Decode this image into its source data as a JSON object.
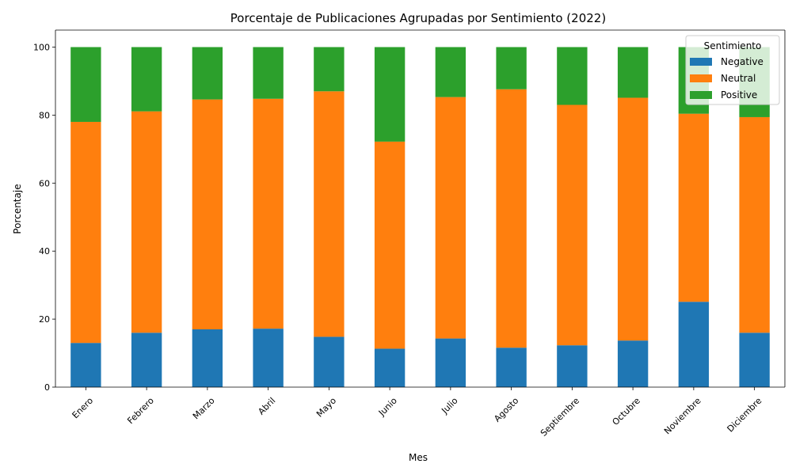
{
  "chart_data": {
    "type": "bar",
    "stacked": true,
    "title": "Porcentaje de Publicaciones Agrupadas por Sentimiento (2022)",
    "xlabel": "Mes",
    "ylabel": "Porcentaje",
    "ylim": [
      0,
      105
    ],
    "yticks": [
      0,
      20,
      40,
      60,
      80,
      100
    ],
    "categories": [
      "Enero",
      "Febrero",
      "Marzo",
      "Abril",
      "Mayo",
      "Junio",
      "Julio",
      "Agosto",
      "Septiembre",
      "Octubre",
      "Noviembre",
      "Diciembre"
    ],
    "series": [
      {
        "name": "Negative",
        "color": "#1f77b4",
        "values": [
          13.0,
          16.0,
          17.0,
          17.2,
          14.8,
          11.3,
          14.3,
          11.6,
          12.3,
          13.7,
          25.1,
          16.0
        ]
      },
      {
        "name": "Neutral",
        "color": "#ff7f0e",
        "values": [
          65.0,
          65.1,
          67.6,
          67.6,
          72.2,
          60.9,
          71.0,
          76.0,
          70.7,
          71.4,
          55.3,
          63.4
        ]
      },
      {
        "name": "Positive",
        "color": "#2ca02c",
        "values": [
          22.0,
          18.9,
          15.4,
          15.2,
          13.0,
          27.8,
          14.7,
          12.4,
          17.0,
          14.9,
          19.6,
          20.6
        ]
      }
    ],
    "legend": {
      "title": "Sentimiento",
      "placement": "upper right"
    },
    "grid": false,
    "x_tick_rotation": 45
  }
}
